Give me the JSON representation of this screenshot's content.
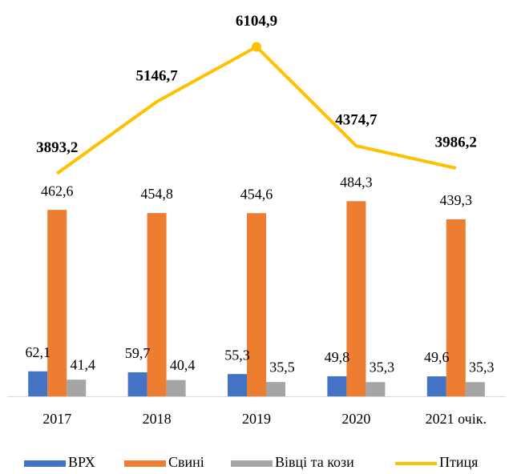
{
  "chart_data": {
    "type": "bar",
    "categories": [
      "2017",
      "2018",
      "2019",
      "2020",
      "2021 очік."
    ],
    "series": [
      {
        "name": "ВРХ",
        "color": "#4472c4",
        "values": [
          62.1,
          59.7,
          55.3,
          49.8,
          49.6
        ],
        "value_labels": [
          "62,1",
          "59,7",
          "55,3",
          "49,8",
          "49,6"
        ]
      },
      {
        "name": "Свині",
        "color": "#ed7d31",
        "values": [
          462.6,
          454.8,
          454.6,
          484.3,
          439.3
        ],
        "value_labels": [
          "462,6",
          "454,8",
          "454,6",
          "484,3",
          "439,3"
        ]
      },
      {
        "name": "Вівці та кози",
        "color": "#a5a5a5",
        "values": [
          41.4,
          40.4,
          35.5,
          35.3,
          35.3
        ],
        "value_labels": [
          "41,4",
          "40,4",
          "35,5",
          "35,3",
          "35,3"
        ]
      },
      {
        "name": "Птиця",
        "type": "line",
        "axis": "y2",
        "color": "#ffc000",
        "values": [
          3893.2,
          5146.7,
          6104.9,
          4374.7,
          3986.2
        ],
        "value_labels": [
          "3893,2",
          "5146,7",
          "6104,9",
          "4374,7",
          "3986,2"
        ]
      }
    ],
    "ylim": [
      0,
      600
    ],
    "y2lim": [
      0,
      6000
    ],
    "grid": false,
    "legend": "bottom"
  }
}
